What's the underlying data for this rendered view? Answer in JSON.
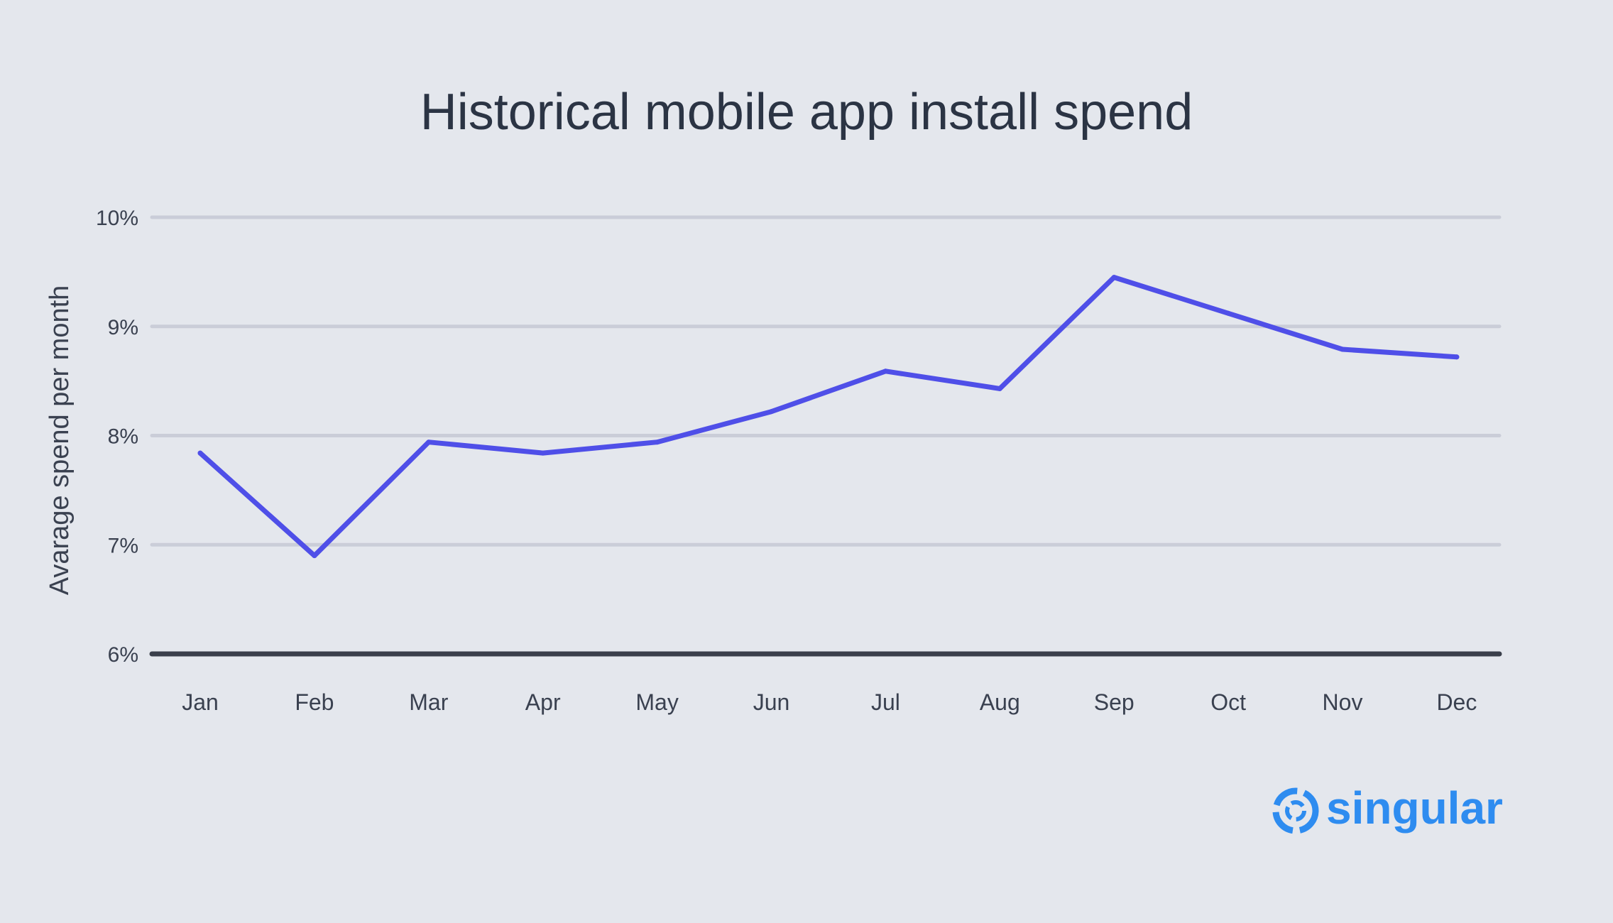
{
  "chart_data": {
    "type": "line",
    "title": "Historical mobile app install spend",
    "ylabel": "Avarage spend per month",
    "xlabel": "",
    "categories": [
      "Jan",
      "Feb",
      "Mar",
      "Apr",
      "May",
      "Jun",
      "Jul",
      "Aug",
      "Sep",
      "Oct",
      "Nov",
      "Dec"
    ],
    "series": [
      {
        "values": [
          7.84,
          6.9,
          7.94,
          7.84,
          7.94,
          8.22,
          8.59,
          8.43,
          9.45,
          9.12,
          8.79,
          8.72
        ]
      }
    ],
    "ylim": [
      6,
      10
    ],
    "yticks": [
      {
        "value": 10,
        "label": "10%"
      },
      {
        "value": 9,
        "label": "9%"
      },
      {
        "value": 8,
        "label": "8%"
      },
      {
        "value": 7,
        "label": "7%"
      },
      {
        "value": 6,
        "label": "6%"
      }
    ],
    "grid": true,
    "legend": "none"
  },
  "brand": {
    "name": "singular",
    "logo_icon": "singular-swirl-icon"
  },
  "colors": {
    "background": "#e4e7ed",
    "line": "#4f4fe8",
    "grid": "#cacdd8",
    "axis": "#3a3f4b",
    "text": "#2b3444",
    "brand": "#2e8cf0"
  }
}
